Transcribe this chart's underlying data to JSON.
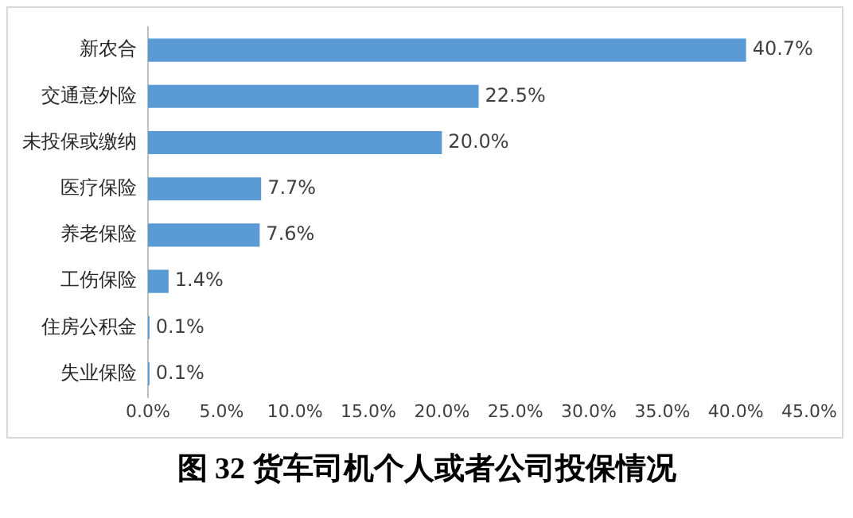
{
  "chart_data": {
    "type": "bar",
    "orientation": "horizontal",
    "title": "图 32  货车司机个人或者公司投保情况",
    "categories": [
      "新农合",
      "交通意外险",
      "未投保或缴纳",
      "医疗保险",
      "养老保险",
      "工伤保险",
      "住房公积金",
      "失业保险"
    ],
    "values": [
      40.7,
      22.5,
      20.0,
      7.7,
      7.6,
      1.4,
      0.1,
      0.1
    ],
    "value_labels": [
      "40.7%",
      "22.5%",
      "20.0%",
      "7.7%",
      "7.6%",
      "1.4%",
      "0.1%",
      "0.1%"
    ],
    "color": "#5b9bd5",
    "xlim": [
      0,
      45
    ],
    "xticks": [
      {
        "value": 0,
        "label": "0.0%"
      },
      {
        "value": 5,
        "label": "5.0%"
      },
      {
        "value": 10,
        "label": "10.0%"
      },
      {
        "value": 15,
        "label": "15.0%"
      },
      {
        "value": 20,
        "label": "20.0%"
      },
      {
        "value": 25,
        "label": "25.0%"
      },
      {
        "value": 30,
        "label": "30.0%"
      },
      {
        "value": 35,
        "label": "35.0%"
      },
      {
        "value": 40,
        "label": "40.0%"
      },
      {
        "value": 45,
        "label": "45.0%"
      }
    ],
    "grid": false,
    "legend": false
  }
}
